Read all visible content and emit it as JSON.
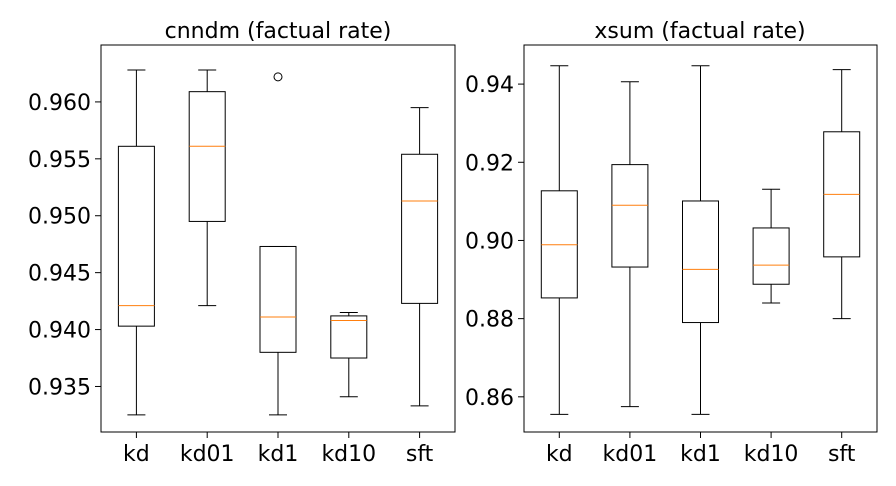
{
  "chart_data": [
    {
      "type": "box",
      "title": "cnndm (factual rate)",
      "categories": [
        "kd",
        "kd01",
        "kd1",
        "kd10",
        "sft"
      ],
      "ylim": [
        0.931,
        0.965
      ],
      "yticks": [
        0.935,
        0.94,
        0.945,
        0.95,
        0.955,
        0.96
      ],
      "ytick_labels": [
        "0.935",
        "0.940",
        "0.945",
        "0.950",
        "0.955",
        "0.960"
      ],
      "boxes": [
        {
          "category": "kd",
          "whisker_low": 0.9325,
          "q1": 0.9403,
          "median": 0.9421,
          "q3": 0.9561,
          "whisker_high": 0.9628,
          "outliers": []
        },
        {
          "category": "kd01",
          "whisker_low": 0.9421,
          "q1": 0.9495,
          "median": 0.9561,
          "q3": 0.9609,
          "whisker_high": 0.9628,
          "outliers": []
        },
        {
          "category": "kd1",
          "whisker_low": 0.9325,
          "q1": 0.938,
          "median": 0.9411,
          "q3": 0.9473,
          "whisker_high": 0.9473,
          "outliers": [
            0.9622
          ]
        },
        {
          "category": "kd10",
          "whisker_low": 0.9341,
          "q1": 0.9375,
          "median": 0.9408,
          "q3": 0.9412,
          "whisker_high": 0.9415,
          "outliers": []
        },
        {
          "category": "sft",
          "whisker_low": 0.9333,
          "q1": 0.9423,
          "median": 0.9513,
          "q3": 0.9554,
          "whisker_high": 0.9595,
          "outliers": []
        }
      ],
      "colors": {
        "box": "#000000",
        "median": "#ff7f0e"
      }
    },
    {
      "type": "box",
      "title": "xsum (factual rate)",
      "categories": [
        "kd",
        "kd01",
        "kd1",
        "kd10",
        "sft"
      ],
      "ylim": [
        0.851,
        0.95
      ],
      "yticks": [
        0.86,
        0.88,
        0.9,
        0.92,
        0.94
      ],
      "ytick_labels": [
        "0.86",
        "0.88",
        "0.90",
        "0.92",
        "0.94"
      ],
      "boxes": [
        {
          "category": "kd",
          "whisker_low": 0.8555,
          "q1": 0.8853,
          "median": 0.8989,
          "q3": 0.9127,
          "whisker_high": 0.9447,
          "outliers": []
        },
        {
          "category": "kd01",
          "whisker_low": 0.8575,
          "q1": 0.8932,
          "median": 0.909,
          "q3": 0.9194,
          "whisker_high": 0.9406,
          "outliers": []
        },
        {
          "category": "kd1",
          "whisker_low": 0.8555,
          "q1": 0.879,
          "median": 0.8926,
          "q3": 0.9101,
          "whisker_high": 0.9447,
          "outliers": []
        },
        {
          "category": "kd10",
          "whisker_low": 0.884,
          "q1": 0.8888,
          "median": 0.8937,
          "q3": 0.9032,
          "whisker_high": 0.9131,
          "outliers": []
        },
        {
          "category": "sft",
          "whisker_low": 0.88,
          "q1": 0.8958,
          "median": 0.9118,
          "q3": 0.9278,
          "whisker_high": 0.9437,
          "outliers": []
        }
      ],
      "colors": {
        "box": "#000000",
        "median": "#ff7f0e"
      }
    }
  ]
}
